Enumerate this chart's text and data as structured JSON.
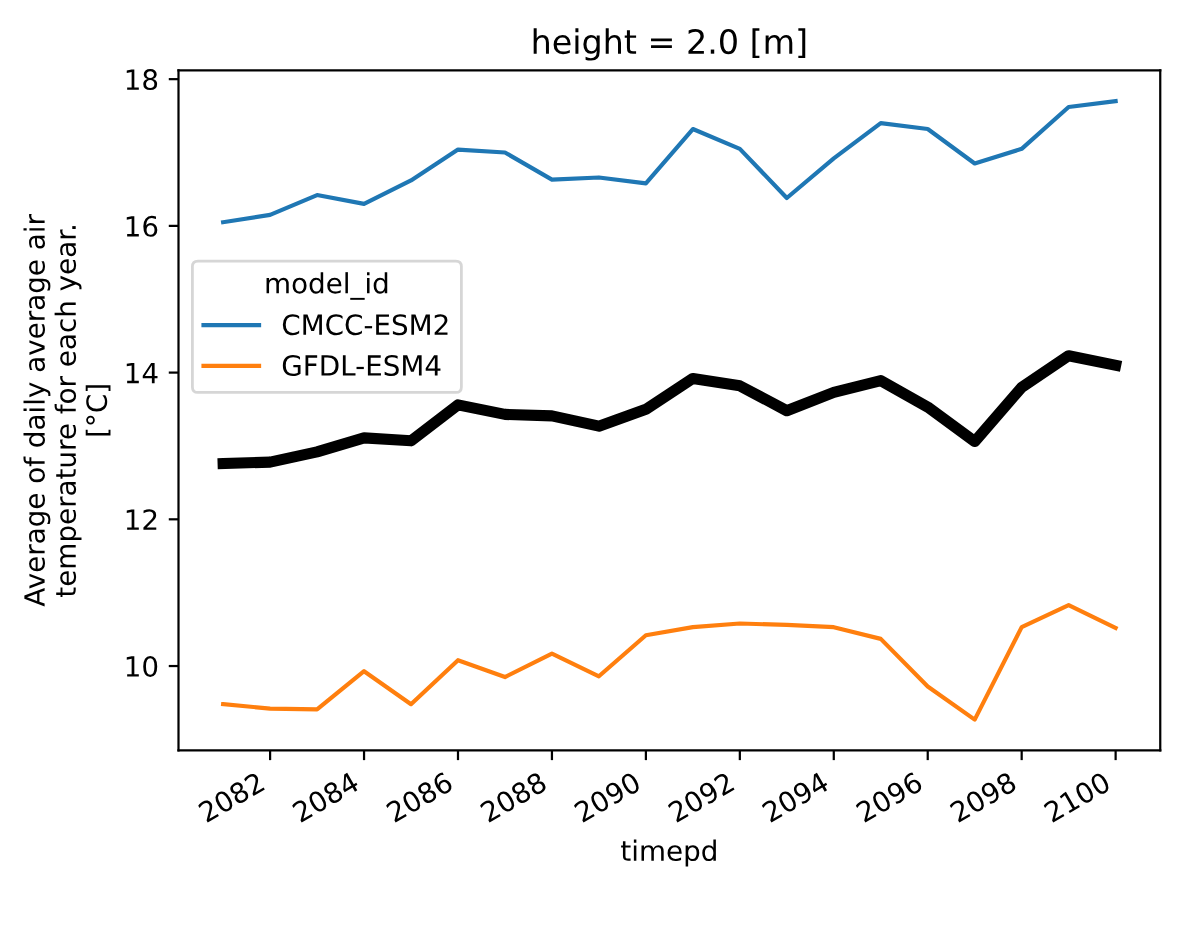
{
  "chart_data": {
    "type": "line",
    "title": "height = 2.0 [m]",
    "xlabel": "timepd",
    "ylabel": "Average of daily average air\ntemperature for each year.\n[°C]",
    "legend_title": "model_id",
    "x": [
      2081,
      2082,
      2083,
      2084,
      2085,
      2086,
      2087,
      2088,
      2089,
      2090,
      2091,
      2092,
      2093,
      2094,
      2095,
      2096,
      2097,
      2098,
      2099,
      2100
    ],
    "series": [
      {
        "name": "CMCC-ESM2",
        "color": "#1f77b4",
        "values": [
          16.05,
          16.15,
          16.42,
          16.3,
          16.62,
          17.04,
          17.0,
          16.63,
          16.66,
          16.58,
          17.32,
          17.05,
          16.38,
          16.92,
          17.4,
          17.32,
          16.85,
          17.05,
          17.62,
          17.7
        ]
      },
      {
        "name": "GFDL-ESM4",
        "color": "#ff7f0e",
        "values": [
          9.48,
          9.42,
          9.41,
          9.93,
          9.48,
          10.08,
          9.85,
          10.17,
          9.86,
          10.42,
          10.53,
          10.58,
          10.56,
          10.53,
          10.37,
          9.72,
          9.27,
          10.53,
          10.83,
          10.52
        ]
      },
      {
        "color": "#000000",
        "values": [
          12.76,
          12.78,
          12.92,
          13.11,
          13.07,
          13.56,
          13.43,
          13.41,
          13.27,
          13.5,
          13.92,
          13.82,
          13.48,
          13.73,
          13.89,
          13.53,
          13.06,
          13.8,
          14.23,
          14.1
        ]
      }
    ],
    "xlim": [
      2080.05,
      2100.95
    ],
    "xticks": [
      2082,
      2084,
      2086,
      2088,
      2090,
      2092,
      2094,
      2096,
      2098,
      2100
    ],
    "ylim": [
      8.85,
      18.12
    ],
    "yticks": [
      10,
      12,
      14,
      16,
      18
    ],
    "grid": false,
    "legend": "left"
  }
}
